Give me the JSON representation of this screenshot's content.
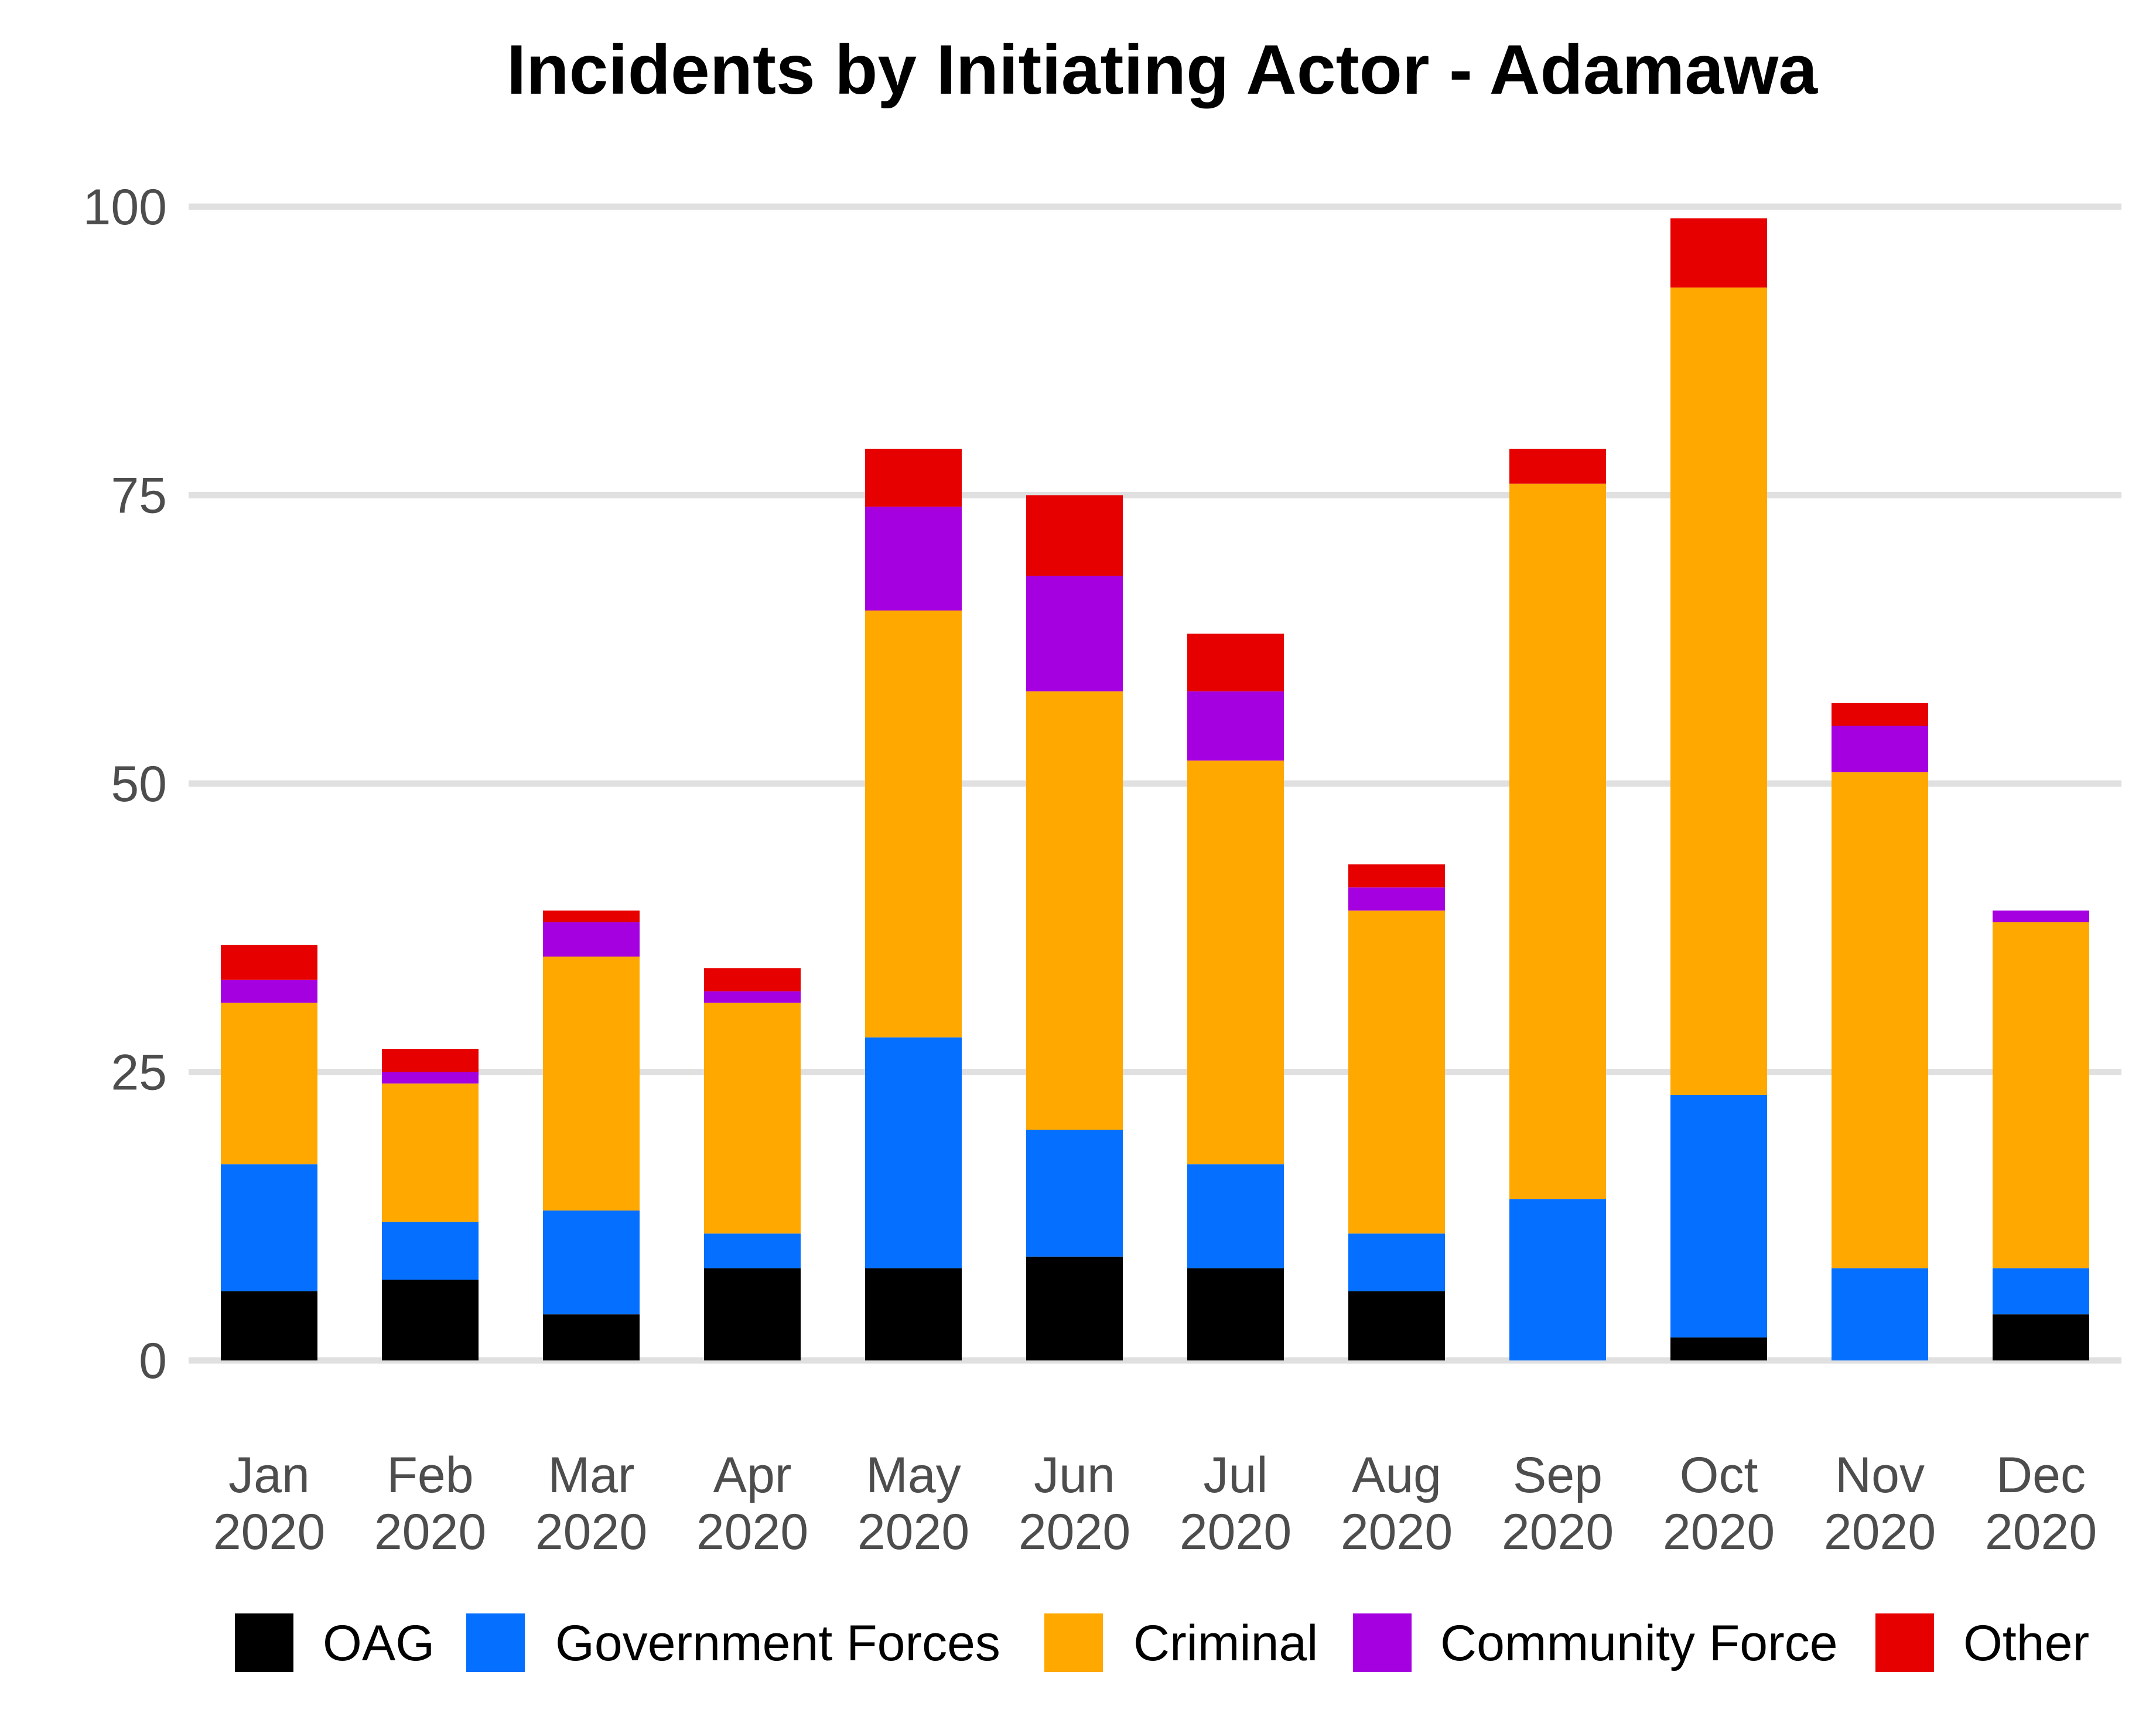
{
  "chart_data": {
    "type": "bar",
    "stacked": true,
    "title": "Incidents by Initiating Actor - Adamawa",
    "xlabel": "",
    "ylabel": "",
    "ylim": [
      0,
      100
    ],
    "yticks": [
      0,
      25,
      50,
      75,
      100
    ],
    "grid": "horizontal",
    "legend_position": "bottom",
    "categories": [
      [
        "Jan",
        "2020"
      ],
      [
        "Feb",
        "2020"
      ],
      [
        "Mar",
        "2020"
      ],
      [
        "Apr",
        "2020"
      ],
      [
        "May",
        "2020"
      ],
      [
        "Jun",
        "2020"
      ],
      [
        "Jul",
        "2020"
      ],
      [
        "Aug",
        "2020"
      ],
      [
        "Sep",
        "2020"
      ],
      [
        "Oct",
        "2020"
      ],
      [
        "Nov",
        "2020"
      ],
      [
        "Dec",
        "2020"
      ]
    ],
    "series": [
      {
        "name": "OAG",
        "color": "#000000",
        "values": [
          6,
          7,
          4,
          8,
          8,
          9,
          8,
          6,
          0,
          2,
          0,
          4
        ]
      },
      {
        "name": "Government Forces",
        "color": "#0570FF",
        "values": [
          11,
          5,
          9,
          3,
          20,
          11,
          9,
          5,
          14,
          21,
          8,
          4
        ]
      },
      {
        "name": "Criminal",
        "color": "#FFA800",
        "values": [
          14,
          12,
          22,
          20,
          37,
          38,
          35,
          28,
          62,
          70,
          43,
          30
        ]
      },
      {
        "name": "Community Force",
        "color": "#A500E0",
        "values": [
          2,
          1,
          3,
          1,
          9,
          10,
          6,
          2,
          0,
          0,
          4,
          1
        ]
      },
      {
        "name": "Other",
        "color": "#E60000",
        "values": [
          3,
          2,
          1,
          2,
          5,
          7,
          5,
          2,
          3,
          6,
          2,
          0
        ]
      }
    ]
  }
}
